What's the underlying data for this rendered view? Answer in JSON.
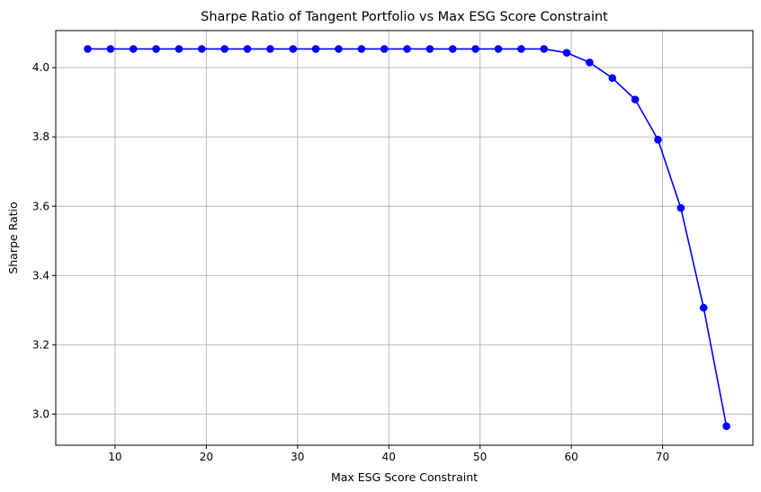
{
  "chart_data": {
    "type": "line",
    "title": "Sharpe Ratio of Tangent Portfolio vs Max ESG Score Constraint",
    "xlabel": "Max ESG Score Constraint",
    "ylabel": "Sharpe Ratio",
    "xlim": [
      3.5,
      79.9
    ],
    "ylim": [
      2.91,
      4.107
    ],
    "xticks": [
      10,
      20,
      30,
      40,
      50,
      60,
      70
    ],
    "yticks": [
      3.0,
      3.2,
      3.4,
      3.6,
      3.8,
      4.0
    ],
    "xtick_labels": [
      "10",
      "20",
      "30",
      "40",
      "50",
      "60",
      "70"
    ],
    "ytick_labels": [
      "3.0",
      "3.2",
      "3.4",
      "3.6",
      "3.8",
      "4.0"
    ],
    "grid": true,
    "marker": "circle",
    "colors": {
      "series": "#0000ff"
    },
    "series": [
      {
        "x": [
          7.0,
          9.5,
          12.0,
          14.5,
          17.0,
          19.5,
          22.0,
          24.5,
          27.0,
          29.5,
          32.0,
          34.5,
          37.0,
          39.5,
          42.0,
          44.5,
          47.0,
          49.5,
          52.0,
          54.5,
          57.0,
          59.5,
          62.0,
          64.5,
          67.0,
          69.5,
          72.0,
          74.5,
          77.0
        ],
        "y": [
          4.054,
          4.054,
          4.054,
          4.054,
          4.054,
          4.054,
          4.054,
          4.054,
          4.054,
          4.054,
          4.054,
          4.054,
          4.054,
          4.054,
          4.054,
          4.054,
          4.054,
          4.054,
          4.054,
          4.054,
          4.054,
          4.043,
          4.015,
          3.97,
          3.908,
          3.792,
          3.595,
          3.307,
          2.965
        ]
      }
    ]
  }
}
